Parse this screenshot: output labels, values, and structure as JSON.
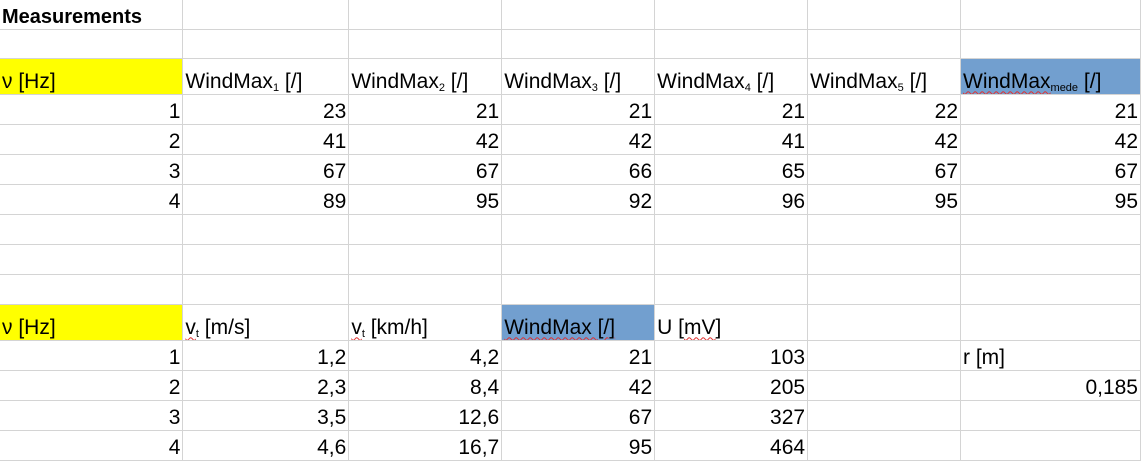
{
  "title": "Measurements",
  "colors": {
    "highlight_yellow": "#ffff00",
    "highlight_blue": "#729fcf",
    "gridline": "#d4d4d4"
  },
  "table1": {
    "headers": [
      {
        "main": "ν [Hz]"
      },
      {
        "main": "WindMax",
        "sub": "1",
        "unit": " [/]"
      },
      {
        "main": "WindMax",
        "sub": "2",
        "unit": " [/]"
      },
      {
        "main": "WindMax",
        "sub": "3",
        "unit": " [/]"
      },
      {
        "main": "WindMax",
        "sub": "4",
        "unit": " [/]"
      },
      {
        "main": "WindMax",
        "sub": "5",
        "unit": " [/]"
      },
      {
        "main": "WindMax",
        "sub": "mede",
        "unit": " [/]"
      }
    ],
    "rows": [
      [
        "1",
        "23",
        "21",
        "21",
        "21",
        "22",
        "21"
      ],
      [
        "2",
        "41",
        "42",
        "42",
        "41",
        "42",
        "42"
      ],
      [
        "3",
        "67",
        "67",
        "66",
        "65",
        "67",
        "67"
      ],
      [
        "4",
        "89",
        "95",
        "92",
        "96",
        "95",
        "95"
      ]
    ]
  },
  "table2": {
    "headers": [
      {
        "main": "ν [Hz]"
      },
      {
        "main": "v",
        "sub": "t",
        "unit": " [m/s]"
      },
      {
        "main": "v",
        "sub": "t",
        "unit": " [km/h]"
      },
      {
        "main": "WindMax [/]"
      },
      {
        "main": "U [",
        "sq": "mV",
        "unit": "]"
      }
    ],
    "rows": [
      [
        "1",
        "1,2",
        "4,2",
        "21",
        "103"
      ],
      [
        "2",
        "2,3",
        "8,4",
        "42",
        "205"
      ],
      [
        "3",
        "3,5",
        "12,6",
        "67",
        "327"
      ],
      [
        "4",
        "4,6",
        "16,7",
        "95",
        "464"
      ]
    ],
    "r_label": "r [m]",
    "r_value": "0,185"
  }
}
